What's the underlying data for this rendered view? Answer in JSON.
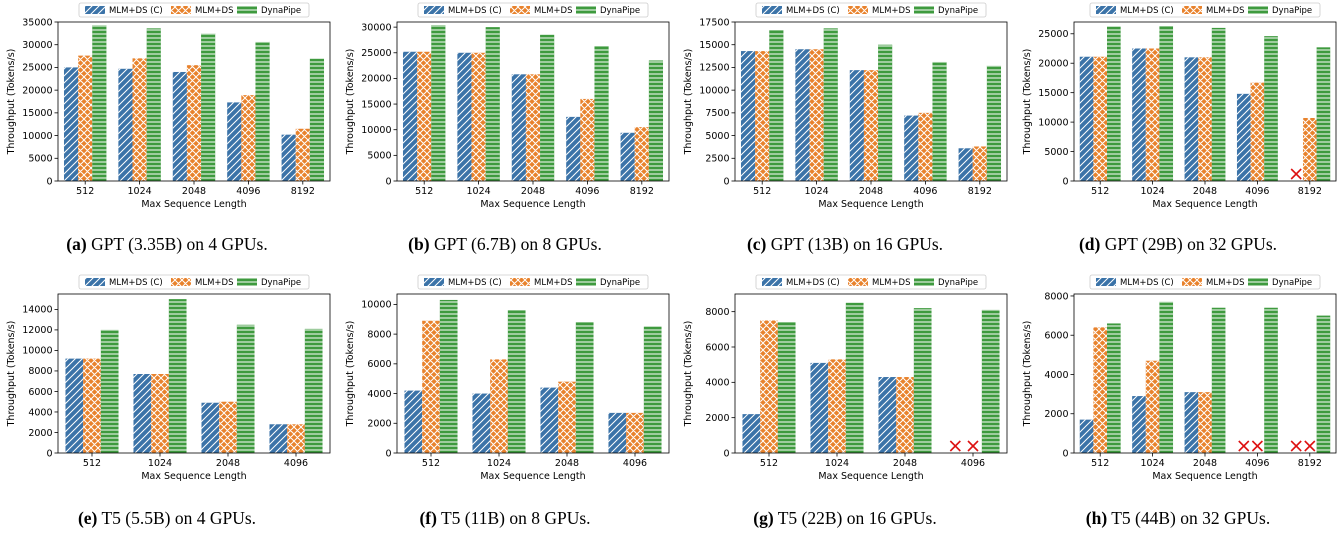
{
  "colors": {
    "mlm_c": "#3b73a8",
    "mlm_ds": "#e8822c",
    "dynapipe": "#3e9a3e",
    "fail_mark": "#dd1111"
  },
  "legend": [
    "MLM+DS (C)",
    "MLM+DS",
    "DynaPipe"
  ],
  "chart_data": [
    {
      "type": "bar",
      "panel": "(a)",
      "caption": "GPT (3.35B) on 4 GPUs.",
      "xlabel": "Max Sequence Length",
      "ylabel": "Throughput (Tokens/s)",
      "ylim": [
        0,
        35000
      ],
      "yticks": [
        0,
        5000,
        10000,
        15000,
        20000,
        25000,
        30000,
        35000
      ],
      "categories": [
        "512",
        "1024",
        "2048",
        "4096",
        "8192"
      ],
      "series": [
        {
          "name": "MLM+DS (C)",
          "values": [
            25000,
            24700,
            24000,
            17300,
            10200
          ]
        },
        {
          "name": "MLM+DS",
          "values": [
            27600,
            27000,
            25500,
            18900,
            11500
          ]
        },
        {
          "name": "DynaPipe",
          "values": [
            34300,
            33600,
            32500,
            30700,
            26900
          ]
        }
      ]
    },
    {
      "type": "bar",
      "panel": "(b)",
      "caption": "GPT (6.7B) on 8 GPUs.",
      "xlabel": "Max Sequence Length",
      "ylabel": "Throughput (Tokens/s)",
      "ylim": [
        0,
        31000
      ],
      "yticks": [
        0,
        5000,
        10000,
        15000,
        20000,
        25000,
        30000
      ],
      "categories": [
        "512",
        "1024",
        "2048",
        "4096",
        "8192"
      ],
      "series": [
        {
          "name": "MLM+DS (C)",
          "values": [
            25200,
            25000,
            20800,
            12500,
            9400
          ]
        },
        {
          "name": "MLM+DS",
          "values": [
            25200,
            25000,
            20800,
            16000,
            10500
          ]
        },
        {
          "name": "DynaPipe",
          "values": [
            30400,
            30000,
            28500,
            26300,
            23500
          ]
        }
      ]
    },
    {
      "type": "bar",
      "panel": "(c)",
      "caption": "GPT (13B) on 16 GPUs.",
      "xlabel": "Max Sequence Length",
      "ylabel": "Throughput (Tokens/s)",
      "ylim": [
        0,
        17500
      ],
      "yticks": [
        0,
        2500,
        5000,
        7500,
        10000,
        12500,
        15000,
        17500
      ],
      "categories": [
        "512",
        "1024",
        "2048",
        "4096",
        "8192"
      ],
      "series": [
        {
          "name": "MLM+DS (C)",
          "values": [
            14300,
            14500,
            12200,
            7200,
            3600
          ]
        },
        {
          "name": "MLM+DS",
          "values": [
            14300,
            14500,
            12200,
            7500,
            3800
          ]
        },
        {
          "name": "DynaPipe",
          "values": [
            16600,
            16800,
            15000,
            13100,
            12700
          ]
        }
      ]
    },
    {
      "type": "bar",
      "panel": "(d)",
      "caption": "GPT (29B) on 32 GPUs.",
      "xlabel": "Max Sequence Length",
      "ylabel": "Throughput (Tokens/s)",
      "ylim": [
        0,
        27000
      ],
      "yticks": [
        0,
        5000,
        10000,
        15000,
        20000,
        25000
      ],
      "categories": [
        "512",
        "1024",
        "2048",
        "4096",
        "8192"
      ],
      "series": [
        {
          "name": "MLM+DS (C)",
          "values": [
            21100,
            22500,
            21000,
            14800,
            null
          ]
        },
        {
          "name": "MLM+DS",
          "values": [
            21100,
            22500,
            21000,
            16700,
            10700
          ]
        },
        {
          "name": "DynaPipe",
          "values": [
            26200,
            26300,
            26000,
            24600,
            22700
          ]
        }
      ]
    },
    {
      "type": "bar",
      "panel": "(e)",
      "caption": "T5 (5.5B) on 4 GPUs.",
      "xlabel": "Max Sequence Length",
      "ylabel": "Throughput (Tokens/s)",
      "ylim": [
        0,
        15500
      ],
      "yticks": [
        0,
        2000,
        4000,
        6000,
        8000,
        10000,
        12000,
        14000
      ],
      "categories": [
        "512",
        "1024",
        "2048",
        "4096"
      ],
      "series": [
        {
          "name": "MLM+DS (C)",
          "values": [
            9200,
            7700,
            4900,
            2800
          ]
        },
        {
          "name": "MLM+DS",
          "values": [
            9200,
            7700,
            5000,
            2800
          ]
        },
        {
          "name": "DynaPipe",
          "values": [
            12000,
            15000,
            12500,
            12100
          ]
        }
      ]
    },
    {
      "type": "bar",
      "panel": "(f)",
      "caption": "T5 (11B) on 8 GPUs.",
      "xlabel": "Max Sequence Length",
      "ylabel": "Throughput (Tokens/s)",
      "ylim": [
        0,
        10700
      ],
      "yticks": [
        0,
        2000,
        4000,
        6000,
        8000,
        10000
      ],
      "categories": [
        "512",
        "1024",
        "2048",
        "4096"
      ],
      "series": [
        {
          "name": "MLM+DS (C)",
          "values": [
            4200,
            4000,
            4400,
            2700
          ]
        },
        {
          "name": "MLM+DS",
          "values": [
            8900,
            6300,
            4800,
            2700
          ]
        },
        {
          "name": "DynaPipe",
          "values": [
            10300,
            9600,
            8800,
            8500
          ]
        }
      ]
    },
    {
      "type": "bar",
      "panel": "(g)",
      "caption": "T5 (22B) on 16 GPUs.",
      "xlabel": "Max Sequence Length",
      "ylabel": "Throughput (Tokens/s)",
      "ylim": [
        0,
        9000
      ],
      "yticks": [
        0,
        2000,
        4000,
        6000,
        8000
      ],
      "categories": [
        "512",
        "1024",
        "2048",
        "4096"
      ],
      "series": [
        {
          "name": "MLM+DS (C)",
          "values": [
            2200,
            5100,
            4300,
            null
          ]
        },
        {
          "name": "MLM+DS",
          "values": [
            7500,
            5300,
            4300,
            null
          ]
        },
        {
          "name": "DynaPipe",
          "values": [
            7400,
            8500,
            8200,
            8100
          ]
        }
      ]
    },
    {
      "type": "bar",
      "panel": "(h)",
      "caption": "T5 (44B) on 32 GPUs.",
      "xlabel": "Max Sequence Length",
      "ylabel": "Throughput (Tokens/s)",
      "ylim": [
        0,
        8100
      ],
      "yticks": [
        0,
        2000,
        4000,
        6000,
        8000
      ],
      "categories": [
        "512",
        "1024",
        "2048",
        "4096",
        "8192"
      ],
      "series": [
        {
          "name": "MLM+DS (C)",
          "values": [
            1700,
            2900,
            3100,
            null,
            null
          ]
        },
        {
          "name": "MLM+DS",
          "values": [
            6400,
            4700,
            3100,
            null,
            null
          ]
        },
        {
          "name": "DynaPipe",
          "values": [
            6600,
            7700,
            7400,
            7400,
            7000
          ]
        }
      ]
    }
  ]
}
